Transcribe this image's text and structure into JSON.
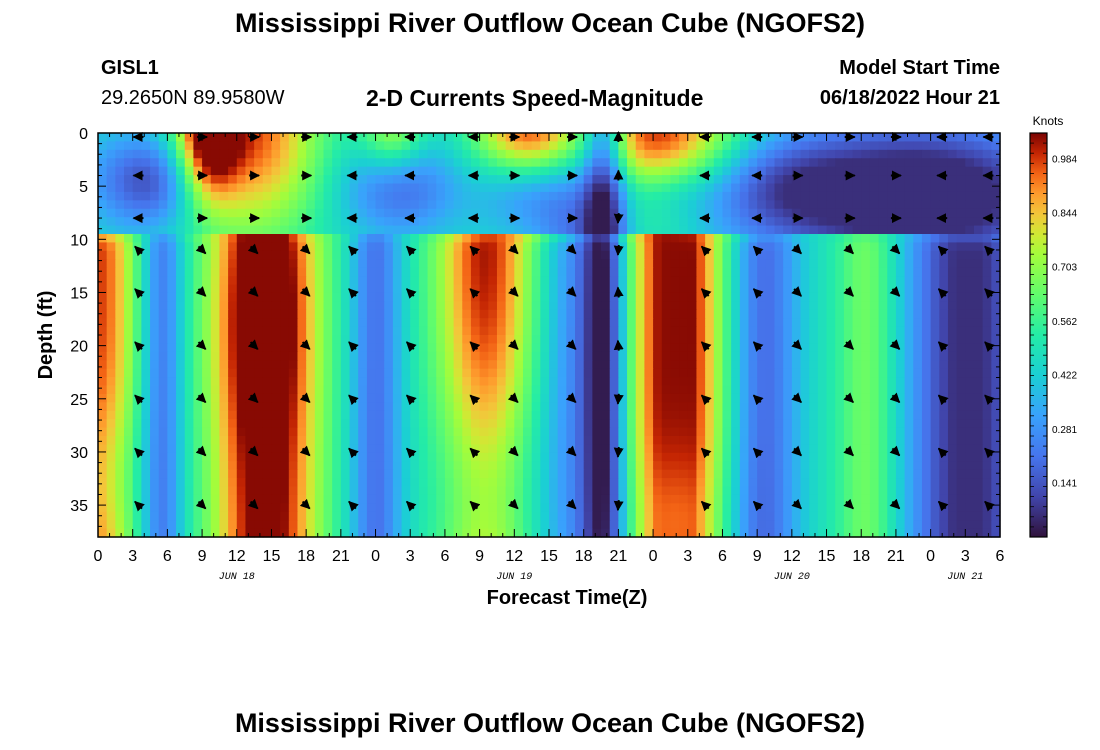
{
  "header": {
    "title": "Mississippi River Outflow Ocean Cube (NGOFS2)",
    "station": "GISL1",
    "location": "29.2650N  89.9580W",
    "subtitle": "2-D Currents Speed-Magnitude",
    "model_label": "Model Start Time",
    "model_time": "06/18/2022 Hour 21"
  },
  "footer": {
    "title": "Mississippi River Outflow Ocean Cube (NGOFS2)"
  },
  "chart_data": {
    "type": "heatmap",
    "title": "2-D Currents Speed-Magnitude",
    "xlabel": "Forecast Time(Z)",
    "ylabel": "Depth (ft)",
    "x_ticks": [
      "0",
      "3",
      "6",
      "9",
      "12",
      "15",
      "18",
      "21",
      "0",
      "3",
      "6",
      "9",
      "12",
      "15",
      "18",
      "21",
      "0",
      "3",
      "6",
      "9",
      "12",
      "15",
      "18",
      "21",
      "0",
      "3",
      "6"
    ],
    "xlim_hours": [
      0,
      78
    ],
    "date_labels": [
      {
        "label": "JUN 18",
        "hour": 12
      },
      {
        "label": "JUN 19",
        "hour": 36
      },
      {
        "label": "JUN 20",
        "hour": 60
      },
      {
        "label": "JUN 21",
        "hour": 75
      }
    ],
    "y_ticks": [
      0,
      5,
      10,
      15,
      20,
      25,
      30,
      35
    ],
    "ylim": [
      0,
      38
    ],
    "colorbar": {
      "label": "Knots",
      "min": 0,
      "max": 1.05,
      "ticks": [
        "0.984",
        "0.844",
        "0.703",
        "0.562",
        "0.422",
        "0.281",
        "0.141"
      ]
    },
    "arrow_times": [
      3.5,
      9,
      13.5,
      18,
      22,
      27,
      32.5,
      36,
      41,
      45,
      52.5,
      57,
      60.5,
      65,
      69,
      73,
      77
    ],
    "arrow_depths": [
      0,
      4,
      8,
      11,
      15,
      20,
      25,
      30,
      35
    ]
  }
}
